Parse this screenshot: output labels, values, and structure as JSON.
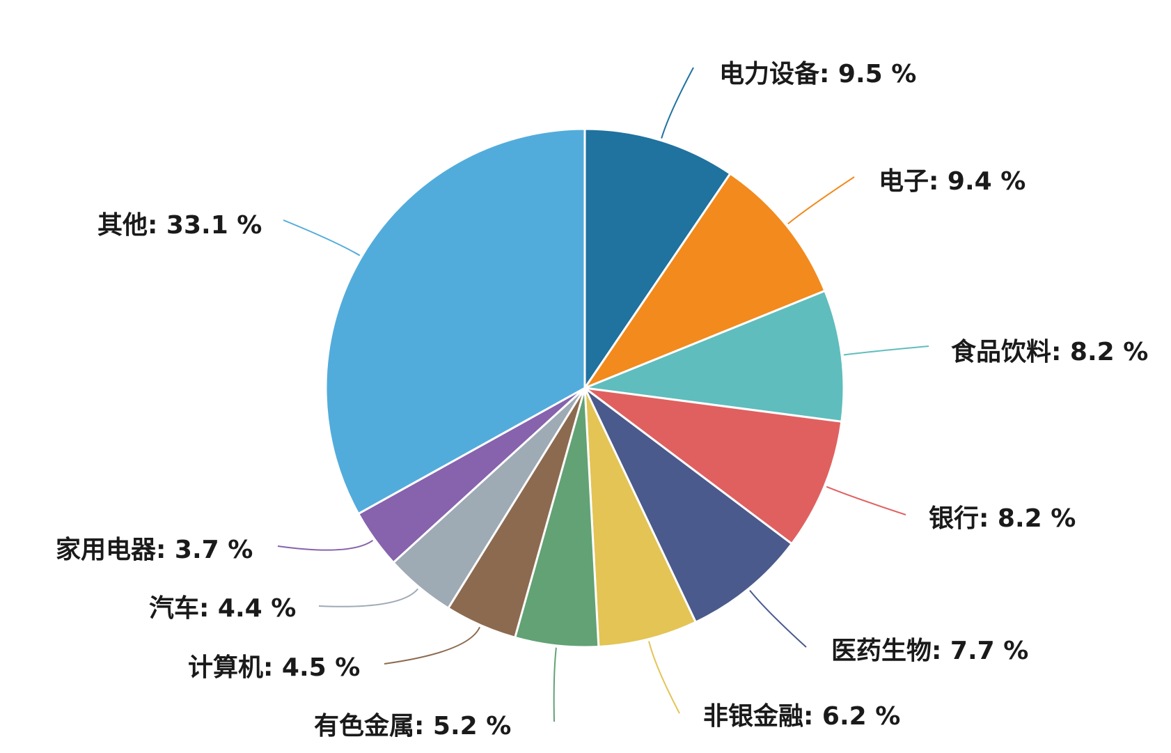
{
  "chart_data": {
    "type": "pie",
    "start_angle_deg": 0,
    "direction": "clockwise",
    "value_suffix": " %",
    "label_separator": ": ",
    "slices": [
      {
        "name": "电力设备",
        "value": 9.5,
        "color": "#20729f"
      },
      {
        "name": "电子",
        "value": 9.4,
        "color": "#f28a1d"
      },
      {
        "name": "食品饮料",
        "value": 8.2,
        "color": "#5fbdbd"
      },
      {
        "name": "银行",
        "value": 8.2,
        "color": "#e06060"
      },
      {
        "name": "医药生物",
        "value": 7.7,
        "color": "#4a5a8c"
      },
      {
        "name": "非银金融",
        "value": 6.2,
        "color": "#e3c455"
      },
      {
        "name": "有色金属",
        "value": 5.2,
        "color": "#62a275"
      },
      {
        "name": "计算机",
        "value": 4.5,
        "color": "#8c6a50"
      },
      {
        "name": "汽车",
        "value": 4.4,
        "color": "#9eaab4"
      },
      {
        "name": "家用电器",
        "value": 3.7,
        "color": "#8762ad"
      },
      {
        "name": "其他",
        "value": 33.1,
        "color": "#52acdb"
      }
    ]
  }
}
